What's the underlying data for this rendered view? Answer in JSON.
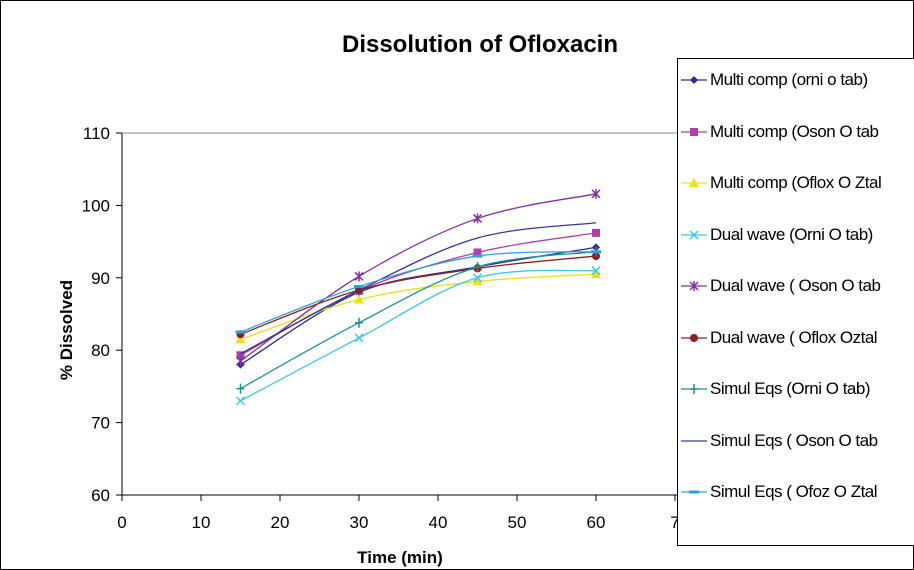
{
  "chart_data": {
    "type": "line",
    "title": "Dissolution of Ofloxacin",
    "xlabel": "Time (min)",
    "ylabel": "% Dissolved",
    "xlim": [
      0,
      70
    ],
    "ylim": [
      60,
      110
    ],
    "xticks": [
      "0",
      "10",
      "20",
      "30",
      "40",
      "50",
      "60",
      "7"
    ],
    "yticks": [
      "60",
      "70",
      "80",
      "90",
      "100",
      "110"
    ],
    "grid": "horizontal line at top only",
    "legend_position": "right",
    "x": [
      15,
      30,
      45,
      60
    ],
    "series": [
      {
        "name": "Multi comp (orni o tab)",
        "values": [
          78,
          88,
          91.5,
          94.2
        ],
        "color": "#2E2E8C",
        "marker": "diamond"
      },
      {
        "name": "Multi comp (Oson O tab",
        "values": [
          79.3,
          88.2,
          93.5,
          96.2
        ],
        "color": "#B040A8",
        "marker": "square"
      },
      {
        "name": "Multi comp (Oflox O Ztal",
        "values": [
          81.5,
          87,
          89.5,
          90.5
        ],
        "color": "#E8E020",
        "marker": "triangle"
      },
      {
        "name": "Dual wave (Orni O tab)",
        "values": [
          73,
          81.7,
          90,
          91
        ],
        "color": "#40C8E0",
        "marker": "x"
      },
      {
        "name": "Dual wave ( Oson O tab",
        "values": [
          78.5,
          90.2,
          98.2,
          101.6
        ],
        "color": "#8030A0",
        "marker": "star"
      },
      {
        "name": "Dual wave ( Oflox Oztal",
        "values": [
          82.2,
          88.3,
          91.3,
          93
        ],
        "color": "#8C2020",
        "marker": "circle"
      },
      {
        "name": "Simul Eqs (Orni O tab)",
        "values": [
          74.7,
          83.8,
          91.5,
          93.6
        ],
        "color": "#209090",
        "marker": "plus"
      },
      {
        "name": "Simul Eqs ( Oson O tab",
        "values": [
          79.5,
          88.3,
          95.5,
          97.6
        ],
        "color": "#2E3A9C",
        "marker": "none"
      },
      {
        "name": "Simul Eqs ( Ofoz O Ztal",
        "values": [
          82.5,
          88.8,
          93,
          93.6
        ],
        "color": "#30A0D8",
        "marker": "dash"
      }
    ]
  }
}
